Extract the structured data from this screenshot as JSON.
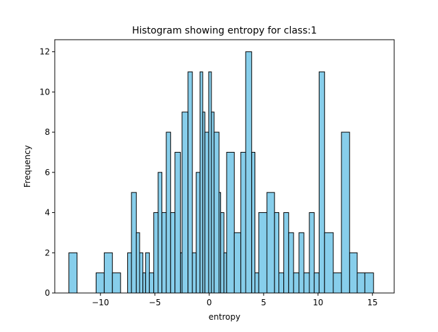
{
  "chart_data": {
    "type": "bar",
    "title": "Histogram showing entropy for class:1",
    "xlabel": "entropy",
    "ylabel": "Frequency",
    "xlim": [
      -14.2,
      17.0
    ],
    "ylim": [
      0,
      12.6
    ],
    "xticks": [
      -10,
      -5,
      0,
      5,
      10,
      15
    ],
    "yticks": [
      0,
      2,
      4,
      6,
      8,
      10,
      12
    ],
    "bar_color": "#87ceeb",
    "edge_color": "#000000",
    "grid": false,
    "bars": [
      {
        "x0": -12.9,
        "x1": -12.15,
        "value": 2
      },
      {
        "x0": -10.4,
        "x1": -9.65,
        "value": 1
      },
      {
        "x0": -9.65,
        "x1": -8.9,
        "value": 2
      },
      {
        "x0": -8.9,
        "x1": -8.15,
        "value": 1
      },
      {
        "x0": -7.5,
        "x1": -7.15,
        "value": 2
      },
      {
        "x0": -7.15,
        "x1": -6.7,
        "value": 5
      },
      {
        "x0": -6.7,
        "x1": -6.4,
        "value": 3
      },
      {
        "x0": -6.4,
        "x1": -6.1,
        "value": 2
      },
      {
        "x0": -6.1,
        "x1": -5.85,
        "value": 1
      },
      {
        "x0": -5.85,
        "x1": -5.5,
        "value": 2
      },
      {
        "x0": -5.5,
        "x1": -5.1,
        "value": 1
      },
      {
        "x0": -5.1,
        "x1": -4.7,
        "value": 4
      },
      {
        "x0": -4.7,
        "x1": -4.35,
        "value": 6
      },
      {
        "x0": -4.35,
        "x1": -3.95,
        "value": 4
      },
      {
        "x0": -3.95,
        "x1": -3.55,
        "value": 8
      },
      {
        "x0": -3.55,
        "x1": -3.15,
        "value": 4
      },
      {
        "x0": -3.15,
        "x1": -2.65,
        "value": 7
      },
      {
        "x0": -2.65,
        "x1": -2.5,
        "value": 2
      },
      {
        "x0": -2.5,
        "x1": -1.95,
        "value": 9
      },
      {
        "x0": -1.95,
        "x1": -1.55,
        "value": 11
      },
      {
        "x0": -1.55,
        "x1": -1.2,
        "value": 2
      },
      {
        "x0": -1.2,
        "x1": -0.85,
        "value": 6
      },
      {
        "x0": -0.85,
        "x1": -0.6,
        "value": 11
      },
      {
        "x0": -0.6,
        "x1": -0.4,
        "value": 9
      },
      {
        "x0": -0.4,
        "x1": -0.05,
        "value": 8
      },
      {
        "x0": -0.05,
        "x1": 0.2,
        "value": 11
      },
      {
        "x0": 0.2,
        "x1": 0.45,
        "value": 9
      },
      {
        "x0": 0.45,
        "x1": 0.9,
        "value": 8
      },
      {
        "x0": 0.9,
        "x1": 1.05,
        "value": 5
      },
      {
        "x0": 1.05,
        "x1": 1.35,
        "value": 4
      },
      {
        "x0": 1.35,
        "x1": 1.6,
        "value": 2
      },
      {
        "x0": 1.6,
        "x1": 2.3,
        "value": 7
      },
      {
        "x0": 2.3,
        "x1": 2.9,
        "value": 3
      },
      {
        "x0": 2.9,
        "x1": 3.35,
        "value": 7
      },
      {
        "x0": 3.35,
        "x1": 3.9,
        "value": 12
      },
      {
        "x0": 3.9,
        "x1": 4.2,
        "value": 7
      },
      {
        "x0": 4.2,
        "x1": 4.55,
        "value": 1
      },
      {
        "x0": 4.55,
        "x1": 5.3,
        "value": 4
      },
      {
        "x0": 5.3,
        "x1": 6.0,
        "value": 5
      },
      {
        "x0": 6.0,
        "x1": 6.4,
        "value": 4
      },
      {
        "x0": 6.4,
        "x1": 6.85,
        "value": 1
      },
      {
        "x0": 6.85,
        "x1": 7.3,
        "value": 4
      },
      {
        "x0": 7.3,
        "x1": 7.75,
        "value": 3
      },
      {
        "x0": 7.75,
        "x1": 8.25,
        "value": 1
      },
      {
        "x0": 8.25,
        "x1": 8.7,
        "value": 3
      },
      {
        "x0": 8.7,
        "x1": 9.2,
        "value": 1
      },
      {
        "x0": 9.2,
        "x1": 9.65,
        "value": 4
      },
      {
        "x0": 9.65,
        "x1": 10.1,
        "value": 1
      },
      {
        "x0": 10.1,
        "x1": 10.6,
        "value": 11
      },
      {
        "x0": 10.6,
        "x1": 11.4,
        "value": 3
      },
      {
        "x0": 11.4,
        "x1": 12.15,
        "value": 1
      },
      {
        "x0": 12.15,
        "x1": 12.9,
        "value": 8
      },
      {
        "x0": 12.9,
        "x1": 13.6,
        "value": 2
      },
      {
        "x0": 13.6,
        "x1": 14.3,
        "value": 1
      },
      {
        "x0": 14.3,
        "x1": 15.1,
        "value": 1
      }
    ]
  }
}
